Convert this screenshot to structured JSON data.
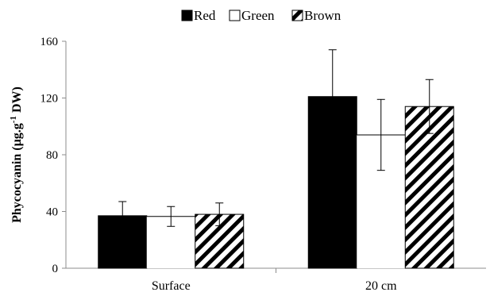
{
  "chart_data": {
    "type": "bar",
    "title": "",
    "categories": [
      "Surface",
      "20 cm"
    ],
    "series": [
      {
        "name": "Red",
        "values": [
          37,
          121
        ],
        "errors": [
          10,
          33
        ],
        "fill": "solid-black"
      },
      {
        "name": "Green",
        "values": [
          36.5,
          94
        ],
        "errors": [
          7,
          25
        ],
        "fill": "white"
      },
      {
        "name": "Brown",
        "values": [
          38,
          114
        ],
        "errors": [
          8,
          19
        ],
        "fill": "diagonal-hatch"
      }
    ],
    "xlabel": "",
    "ylabel": "Phycocyanin (µg.g",
    "ylabel_sup": "-1",
    "ylabel_suffix": " DW)",
    "ylim": [
      0,
      160
    ],
    "yticks": [
      0,
      40,
      80,
      120,
      160
    ],
    "grid": false,
    "legend_position": "top-center"
  }
}
